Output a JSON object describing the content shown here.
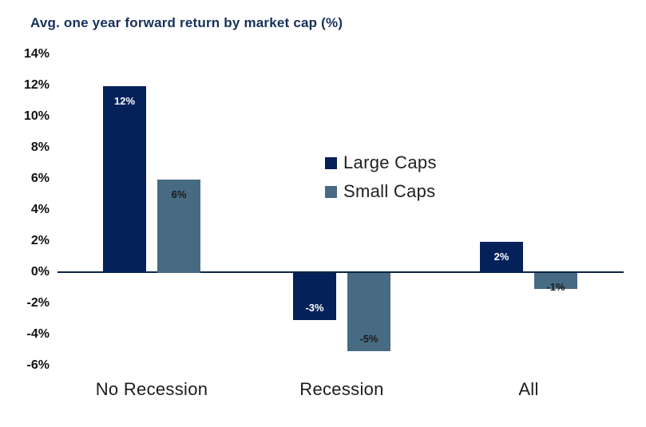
{
  "chart_data": {
    "type": "bar",
    "title": "Avg. one year forward return by market cap (%)",
    "categories": [
      "No Recession",
      "Recession",
      "All"
    ],
    "series": [
      {
        "name": "Large Caps",
        "values": [
          12,
          -3,
          2
        ],
        "color": "#04215a",
        "label_color": "#ffffff"
      },
      {
        "name": "Small Caps",
        "values": [
          6,
          -5,
          -1
        ],
        "color": "#476b83",
        "label_color": "#1a1a1a"
      }
    ],
    "data_labels": {
      "Large Caps": [
        "12%",
        "-3%",
        "2%"
      ],
      "Small Caps": [
        "6%",
        "-5%",
        "-1%"
      ]
    },
    "value_suffix": "%",
    "y_ticks": [
      {
        "value": 14,
        "label": "14%"
      },
      {
        "value": 12,
        "label": "12%"
      },
      {
        "value": 10,
        "label": "10%"
      },
      {
        "value": 8,
        "label": "8%"
      },
      {
        "value": 6,
        "label": "6%"
      },
      {
        "value": 4,
        "label": "4%"
      },
      {
        "value": 2,
        "label": "2%"
      },
      {
        "value": 0,
        "label": "0%"
      },
      {
        "value": -2,
        "label": "-2%"
      },
      {
        "value": -4,
        "label": "-4%"
      },
      {
        "value": -6,
        "label": "-6%"
      }
    ],
    "ylim": [
      -6,
      14
    ],
    "xlabel": "",
    "ylabel": "",
    "grid": false,
    "legend_position": "middle-right",
    "colors": {
      "title": "#16305a",
      "axis_line": "#0b2545",
      "tick_text": "#111111",
      "category_text": "#1c1c1c",
      "legend_text": "#1f1f1f",
      "background": "#ffffff"
    }
  }
}
